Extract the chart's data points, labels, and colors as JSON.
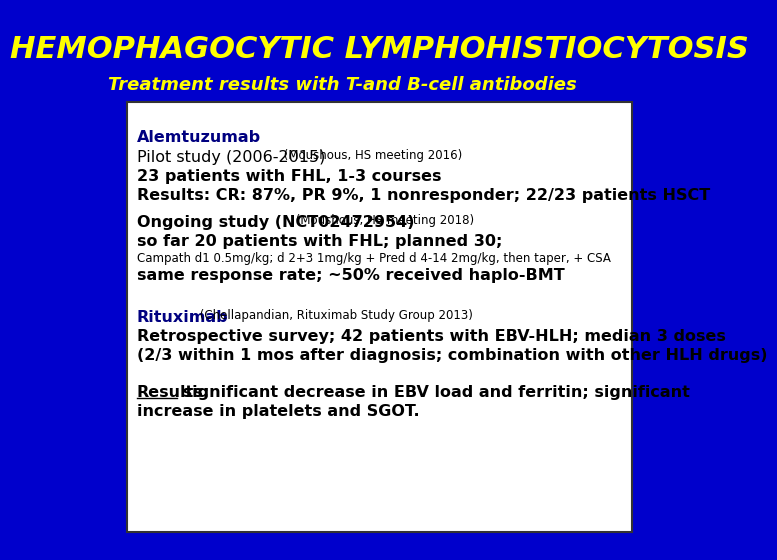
{
  "title": "HEMOPHAGOCYTIC LYMPHOHISTIOCYTOSIS",
  "subtitle": "Treatment results with T-and B-cell antibodies",
  "title_color": "#FFFF00",
  "subtitle_color": "#FFFF00",
  "header_bg": "#0000CC",
  "content_bg": "#FFFFFF",
  "box_border_color": "#333333",
  "alemtuzumab_label": "Alemtuzumab",
  "alemtuzumab_color": "#000080",
  "line1": "Pilot study (2006-2015)",
  "line1_small": " (Moushous, HS meeting 2016)",
  "line2": "23 patients with FHL, 1-3 courses",
  "line3": "Results: CR: 87%, PR 9%, 1 nonresponder; 22/23 patients HSCT",
  "line4_bold": "Ongoing study (NCT02472954)",
  "line4_small": " (Moushous, HS meeting 2018)",
  "line5": "so far 20 patients with FHL; planned 30;",
  "line6_small": "Campath d1 0.5mg/kg; d 2+3 1mg/kg + Pred d 4-14 2mg/kg, then taper, + CSA",
  "line7": "same response rate; ~50% received haplo-BMT",
  "rituximab_label": "Rituximab",
  "rituximab_color": "#000080",
  "rituximab_small": " (Chellapandian, Rituximab Study Group 2013)",
  "line8": "Retrospective survey; 42 patients with EBV-HLH; median 3 doses",
  "line9": "(2/3 within 1 mos after diagnosis; combination with other HLH drugs)",
  "results_underline": "Results:",
  "line10_rest": " significant decrease in EBV load and ferritin; significant",
  "line11": "increase in platelets and SGOT.",
  "content_text_color": "#000000"
}
